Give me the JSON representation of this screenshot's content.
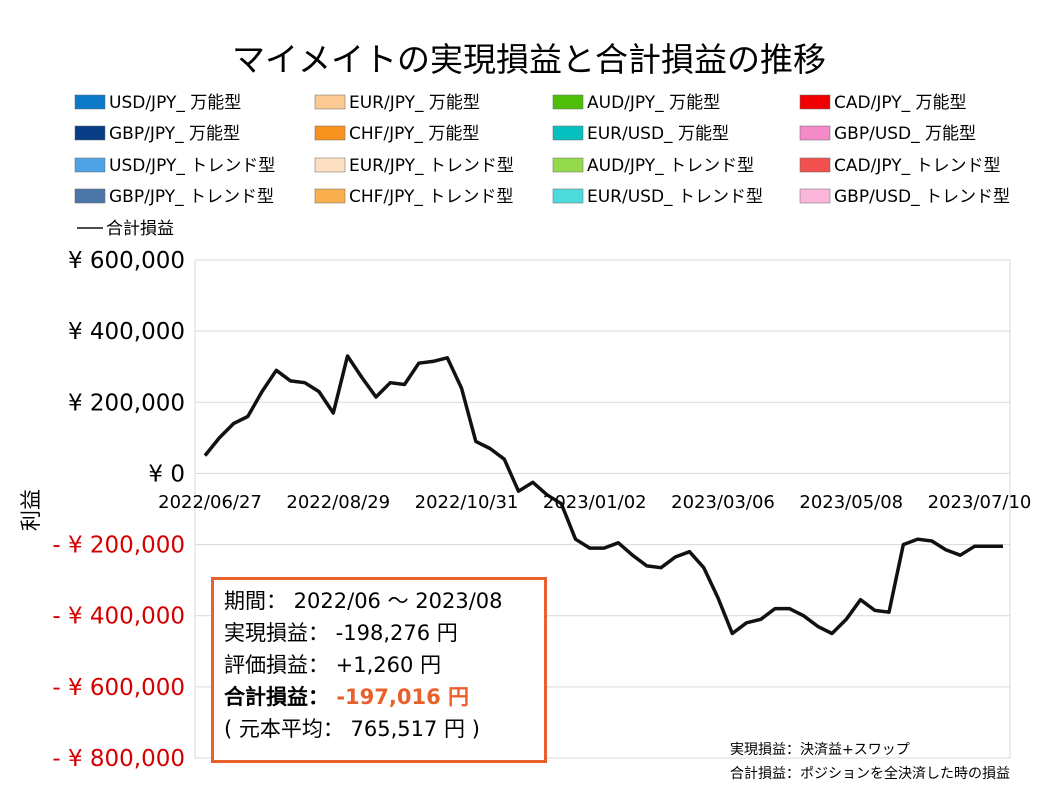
{
  "chart_data": {
    "type": "bar",
    "title": "マイメイトの実現損益と合計損益の推移",
    "ylabel": "利益",
    "ylim": [
      -800000,
      600000
    ],
    "y_ticks": [
      {
        "value": 600000,
        "label": "¥ 600,000"
      },
      {
        "value": 400000,
        "label": "¥ 400,000"
      },
      {
        "value": 200000,
        "label": "¥ 200,000"
      },
      {
        "value": 0,
        "label": "¥ 0"
      },
      {
        "value": -200000,
        "label": "- ¥ 200,000"
      },
      {
        "value": -400000,
        "label": "- ¥ 400,000"
      },
      {
        "value": -600000,
        "label": "- ¥ 600,000"
      },
      {
        "value": -800000,
        "label": "- ¥ 800,000"
      }
    ],
    "negative_tick_color": "#d40000",
    "x_ticks": [
      "2022/06/27",
      "2022/08/29",
      "2022/10/31",
      "2023/01/02",
      "2023/03/06",
      "2023/05/08",
      "2023/07/10"
    ],
    "grid": true,
    "legend_position": "top",
    "legend": [
      {
        "name": "USD/JPY_ 万能型",
        "color": "#0c79c9"
      },
      {
        "name": "EUR/JPY_ 万能型",
        "color": "#fbc992"
      },
      {
        "name": "AUD/JPY_ 万能型",
        "color": "#4fbf0a"
      },
      {
        "name": "CAD/JPY_ 万能型",
        "color": "#f00000"
      },
      {
        "name": "GBP/JPY_ 万能型",
        "color": "#083d86"
      },
      {
        "name": "CHF/JPY_ 万能型",
        "color": "#f7921e"
      },
      {
        "name": "EUR/USD_ 万能型",
        "color": "#06c0c0"
      },
      {
        "name": "GBP/USD_ 万能型",
        "color": "#f48ac8"
      },
      {
        "name": "USD/JPY_ トレンド型",
        "color": "#4ea3e6"
      },
      {
        "name": "EUR/JPY_ トレンド型",
        "color": "#fde0c4"
      },
      {
        "name": "AUD/JPY_ トレンド型",
        "color": "#95d94c"
      },
      {
        "name": "CAD/JPY_ トレンド型",
        "color": "#f24f4f"
      },
      {
        "name": "GBP/JPY_ トレンド型",
        "color": "#4d76a8"
      },
      {
        "name": "CHF/JPY_ トレンド型",
        "color": "#fbb04e"
      },
      {
        "name": "EUR/USD_ トレンド型",
        "color": "#4ddbdb"
      },
      {
        "name": "GBP/USD_ トレンド型",
        "color": "#fbb6dc"
      },
      {
        "name": "合計損益",
        "color": "#111111",
        "line": true
      }
    ],
    "total_line_values": [
      50000,
      100000,
      140000,
      160000,
      230000,
      290000,
      260000,
      255000,
      230000,
      170000,
      330000,
      270000,
      215000,
      255000,
      250000,
      310000,
      315000,
      325000,
      240000,
      90000,
      70000,
      40000,
      -50000,
      -25000,
      -60000,
      -85000,
      -185000,
      -210000,
      -210000,
      -195000,
      -230000,
      -260000,
      -265000,
      -235000,
      -220000,
      -265000,
      -350000,
      -450000,
      -420000,
      -410000,
      -380000,
      -380000,
      -400000,
      -430000,
      -450000,
      -410000,
      -355000,
      -385000,
      -390000,
      -200000,
      -185000,
      -190000,
      -215000,
      -230000,
      -205000,
      -205000,
      -205000
    ]
  },
  "summary": {
    "period": "期間： 2022/06 〜 2023/08",
    "realized": "実現損益： -198,276 円",
    "unrealized": "評価損益： +1,260 円",
    "total_label": "合計損益：",
    "total_value": "-197,016 円",
    "principal": "( 元本平均： 765,517 円 )"
  },
  "notes": {
    "realized_def": "実現損益：決済益+スワップ",
    "total_def": "合計損益：ポジションを全決済した時の損益"
  }
}
